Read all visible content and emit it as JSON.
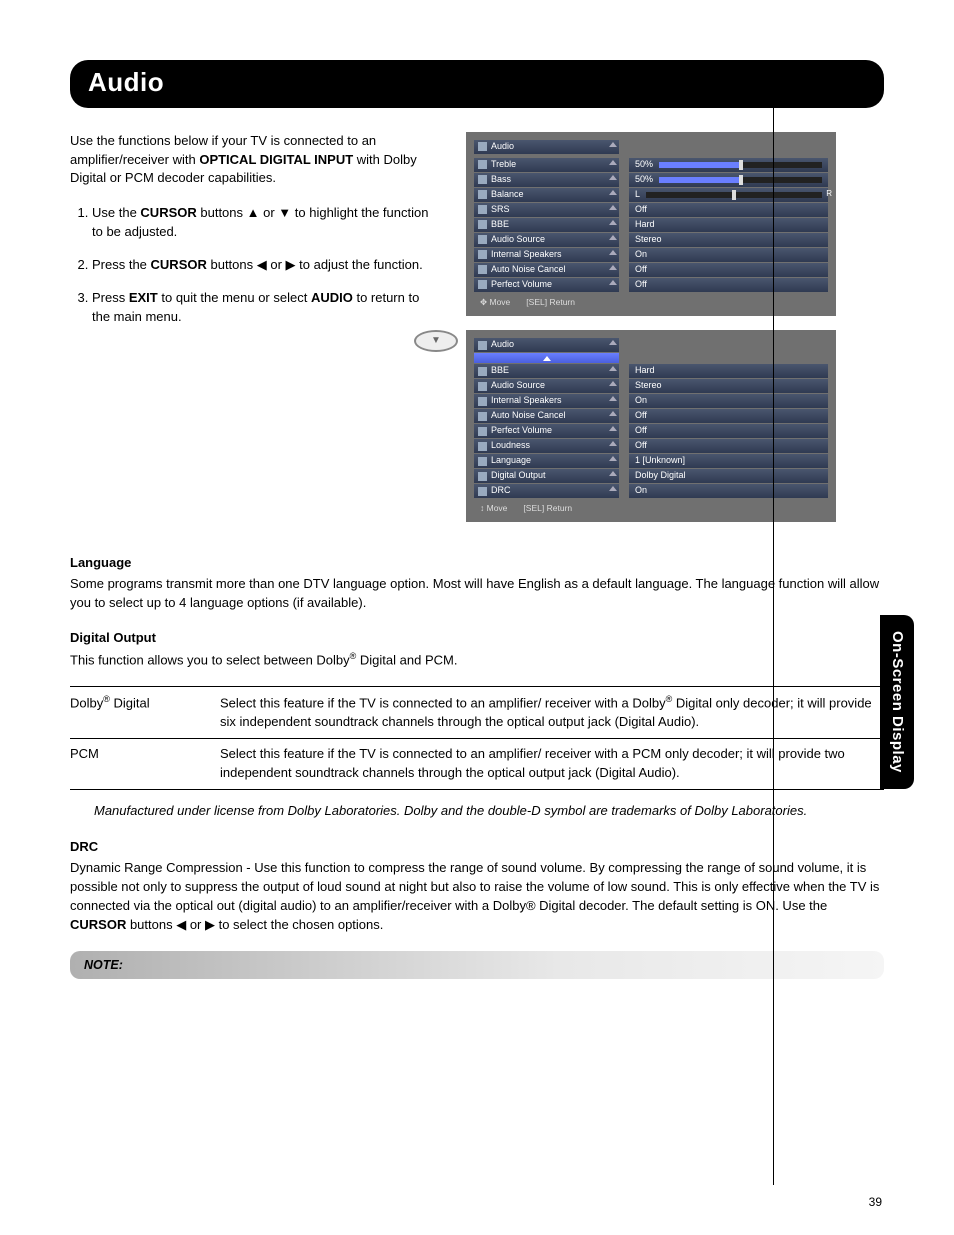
{
  "sideTab": "On-Screen Display",
  "heading": "Audio",
  "intro_a": "Use the functions below if your TV is connected to an amplifier/receiver with ",
  "intro_b_bold": "OPTICAL DIGITAL INPUT",
  "intro_c": " with Dolby Digital or PCM decoder capabilities.",
  "step1_a": "Use the ",
  "step1_b": "CURSOR",
  "step1_c": " buttons ▲ or ▼ to highlight the function to be adjusted.",
  "step2_a": "Press the ",
  "step2_b": "CURSOR",
  "step2_c": " buttons ◀ or ▶ to adjust the function.",
  "step3_a": "Press ",
  "step3_b": "EXIT",
  "step3_c": " to quit the menu or select ",
  "step3_d": "AUDIO",
  "step3_e": " to return to the main menu.",
  "osd1": {
    "title": "Audio",
    "rows": [
      {
        "l": "Treble",
        "r": "50%",
        "bar": 50
      },
      {
        "l": "Bass",
        "r": "50%",
        "bar": 50
      },
      {
        "l": "Balance",
        "r": "L",
        "bar": 50,
        "balance": true
      },
      {
        "l": "SRS",
        "r": "Off"
      },
      {
        "l": "BBE",
        "r": "Hard"
      },
      {
        "l": "Audio Source",
        "r": "Stereo"
      },
      {
        "l": "Internal Speakers",
        "r": "On"
      },
      {
        "l": "Auto Noise Cancel",
        "r": "Off"
      },
      {
        "l": "Perfect Volume",
        "r": "Off"
      }
    ],
    "footer_move": "Move",
    "footer_sel": "SEL",
    "footer_return": "Return"
  },
  "osd2": {
    "title": "Audio",
    "rows": [
      {
        "l": "BBE",
        "r": "Hard"
      },
      {
        "l": "Audio Source",
        "r": "Stereo"
      },
      {
        "l": "Internal Speakers",
        "r": "On"
      },
      {
        "l": "Auto Noise Cancel",
        "r": "Off"
      },
      {
        "l": "Perfect Volume",
        "r": "Off"
      },
      {
        "l": "Loudness",
        "r": "Off"
      },
      {
        "l": "Language",
        "r": "1 [Unknown]"
      },
      {
        "l": "Digital Output",
        "r": "Dolby Digital"
      },
      {
        "l": "DRC",
        "r": "On"
      }
    ],
    "footer_move": "Move",
    "footer_sel": "SEL",
    "footer_return": "Return"
  },
  "lang_h": "Language",
  "lang_p": "Some programs transmit more than one DTV language option. Most will have English as a default language. The language function will allow you to select up to 4 language options (if available).",
  "dig_h": "Digital Output",
  "dig_p_a": "This function allows you to select between Dolby",
  "dig_p_b": " Digital and PCM.",
  "defs": [
    {
      "term_a": "Dolby",
      "term_b": " Digital",
      "desc_a": "Select this feature if the TV is connected to an amplifier/ receiver with a Dolby",
      "desc_b": " Digital only decoder; it will provide six independent soundtrack channels through the optical output jack (Digital Audio)."
    },
    {
      "term_a": "PCM",
      "term_b": "",
      "desc_a": "Select this feature if the TV is connected to an amplifier/ receiver with a PCM only decoder; it will provide two independent soundtrack channels through the optical output jack (Digital Audio).",
      "desc_b": ""
    }
  ],
  "italic_note": "Manufactured under license from Dolby Laboratories.  Dolby  and the double-D symbol are trademarks of Dolby Laboratories.",
  "drc_h": "DRC",
  "drc_p_a": "Dynamic Range Compression - Use this function to compress the range of sound volume. By compressing the range of sound volume, it is possible not only to suppress the output of loud sound at night but also to raise the volume of low sound. This is only effective when the TV is connected via the optical out (digital audio) to an amplifier/receiver with a Dolby® Digital decoder. The default setting is ON. Use the ",
  "drc_p_b": "CURSOR",
  "drc_p_c": " buttons ◀ or ▶ to select the chosen options.",
  "note_label": "NOTE:",
  "pageNum": "39",
  "reg": "®",
  "remote_hint_sym": "▼"
}
